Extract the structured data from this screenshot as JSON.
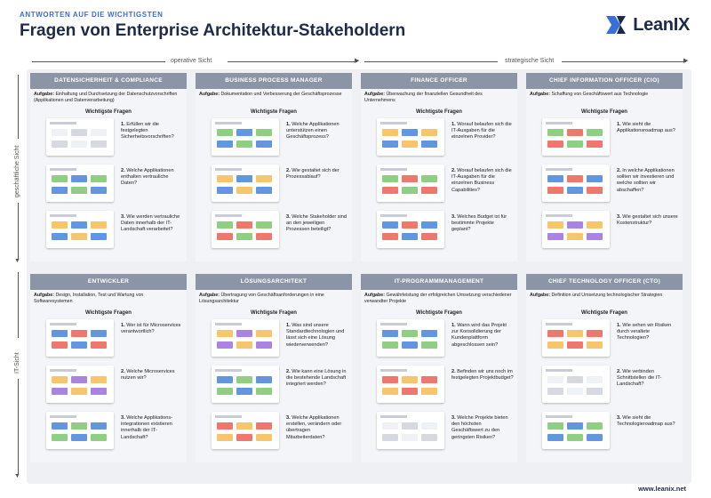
{
  "header": {
    "kicker": "ANTWORTEN AUF DIE WICHTIGSTEN",
    "title": "Fragen von Enterprise Architektur-Stakeholdern",
    "logo_text": "LeanIX"
  },
  "axes": {
    "top_left": "operative Sicht",
    "top_right": "strategische Sicht",
    "side_top": "geschäftliche Sicht",
    "side_bottom": "IT-Sicht"
  },
  "labels": {
    "task_prefix": "Aufgabe:",
    "questions_heading": "Wichtigste Fragen"
  },
  "cards": [
    {
      "title": "DATENSICHERHEIT & COMPLIANCE",
      "task": "Einhaltung und Durchsetzung der Datenschutzvorschriften (Applikationen und Datenverarbeitung)",
      "questions": [
        {
          "n": "1.",
          "text": "Erfüllen wir die festgelegten Sicherheitsvorschriften?"
        },
        {
          "n": "2.",
          "text": "Welche Applikationen enthalten vertrauliche Daten?"
        },
        {
          "n": "3.",
          "text": "Wie werden vertrauliche Daten innerhalb der IT-Landschaft verarbeitet?"
        }
      ]
    },
    {
      "title": "BUSINESS PROCESS MANAGER",
      "task": "Dokumentation und Verbesserung der Geschäftsprozesse",
      "questions": [
        {
          "n": "1.",
          "text": "Welche Applikationen unterstützen einen Geschäftsprozess?"
        },
        {
          "n": "2.",
          "text": "Wie gestaltet sich der Prozessablauf?"
        },
        {
          "n": "3.",
          "text": "Welche Stakeholder sind an den jeweiligen Prozessen beteiligt?"
        }
      ]
    },
    {
      "title": "FINANCE OFFICER",
      "task": "Überwachung der finanziellen Gesundheit des Unternehmens",
      "questions": [
        {
          "n": "1.",
          "text": "Worauf belaufen sich die IT-Ausgaben für die einzelnen Provider?"
        },
        {
          "n": "2.",
          "text": "Worauf belaufen sich die IT-Ausgaben für die einzelnen Business Capabilities?"
        },
        {
          "n": "3.",
          "text": "Welches Budget ist für bestimmte Projekte geplant?"
        }
      ]
    },
    {
      "title": "CHIEF INFORMATION OFFICER (CIO)",
      "task": "Schaffung von Geschäftswert aus Technologie",
      "questions": [
        {
          "n": "1.",
          "text": "Wie sieht die Applikationsroadmap aus?"
        },
        {
          "n": "2.",
          "text": "In welche Applikationen sollten wir investieren und welche sollten wir abschaffen?"
        },
        {
          "n": "3.",
          "text": "Wie gestaltet sich unsere Kostenstruktur?"
        }
      ]
    },
    {
      "title": "ENTWICKLER",
      "task": "Design, Installation, Test und Wartung von Softwaresystemen",
      "questions": [
        {
          "n": "1.",
          "text": "Wer ist für Microservices verantwortlich?"
        },
        {
          "n": "2.",
          "text": "Welche Microservices nutzen wir?"
        },
        {
          "n": "3.",
          "text": "Welche Applikations-integrationen existieren innerhalb der IT-Landschaft?"
        }
      ]
    },
    {
      "title": "LÖSUNGSARCHITEKT",
      "task": "Übertragung von Geschäftsanforderungen in eine Lösungsarchitektur",
      "questions": [
        {
          "n": "1.",
          "text": "Was sind unsere Standardtechnologien und lässt sich eine Lösung wiederverwenden?"
        },
        {
          "n": "2.",
          "text": "Wie kann eine Lösung in die bestehende Landschaft integriert werden?"
        },
        {
          "n": "3.",
          "text": "Welche Applikationen erstellen, verändern oder übertragen Mitarbeiterdaten?"
        }
      ]
    },
    {
      "title": "IT-PROGRAMMMANAGEMENT",
      "task": "Gewährleistung der erfolgreichen Umsetzung verschiedener verwandter Projekte",
      "questions": [
        {
          "n": "1.",
          "text": "Wann wird das Projekt zur Konsolidierung der Kundenplattform abgeschlossen sein?"
        },
        {
          "n": "2.",
          "text": "Befinden wir uns noch im festgelegten Projektbudget?"
        },
        {
          "n": "3.",
          "text": "Welche Projekte bieten den höchsten Geschäftswert zu den geringsten Risiken?"
        }
      ]
    },
    {
      "title": "CHIEF TECHNOLOGY OFFICER (CTO)",
      "task": "Definition und Umsetzung technologischer Strategien",
      "questions": [
        {
          "n": "1.",
          "text": "Wie sehen wir Risiken durch veraltete Technologien?"
        },
        {
          "n": "2.",
          "text": "Wie verbinden Schnittstellen die IT-Landschaft?"
        },
        {
          "n": "3.",
          "text": "Wie sieht die Technologieroadmap aus?"
        }
      ]
    }
  ],
  "footer": {
    "url": "www.leanix.net"
  },
  "colors": {
    "accent": "#3b6fd8",
    "card_header": "#8c95a6",
    "navy": "#1e2a4a"
  }
}
